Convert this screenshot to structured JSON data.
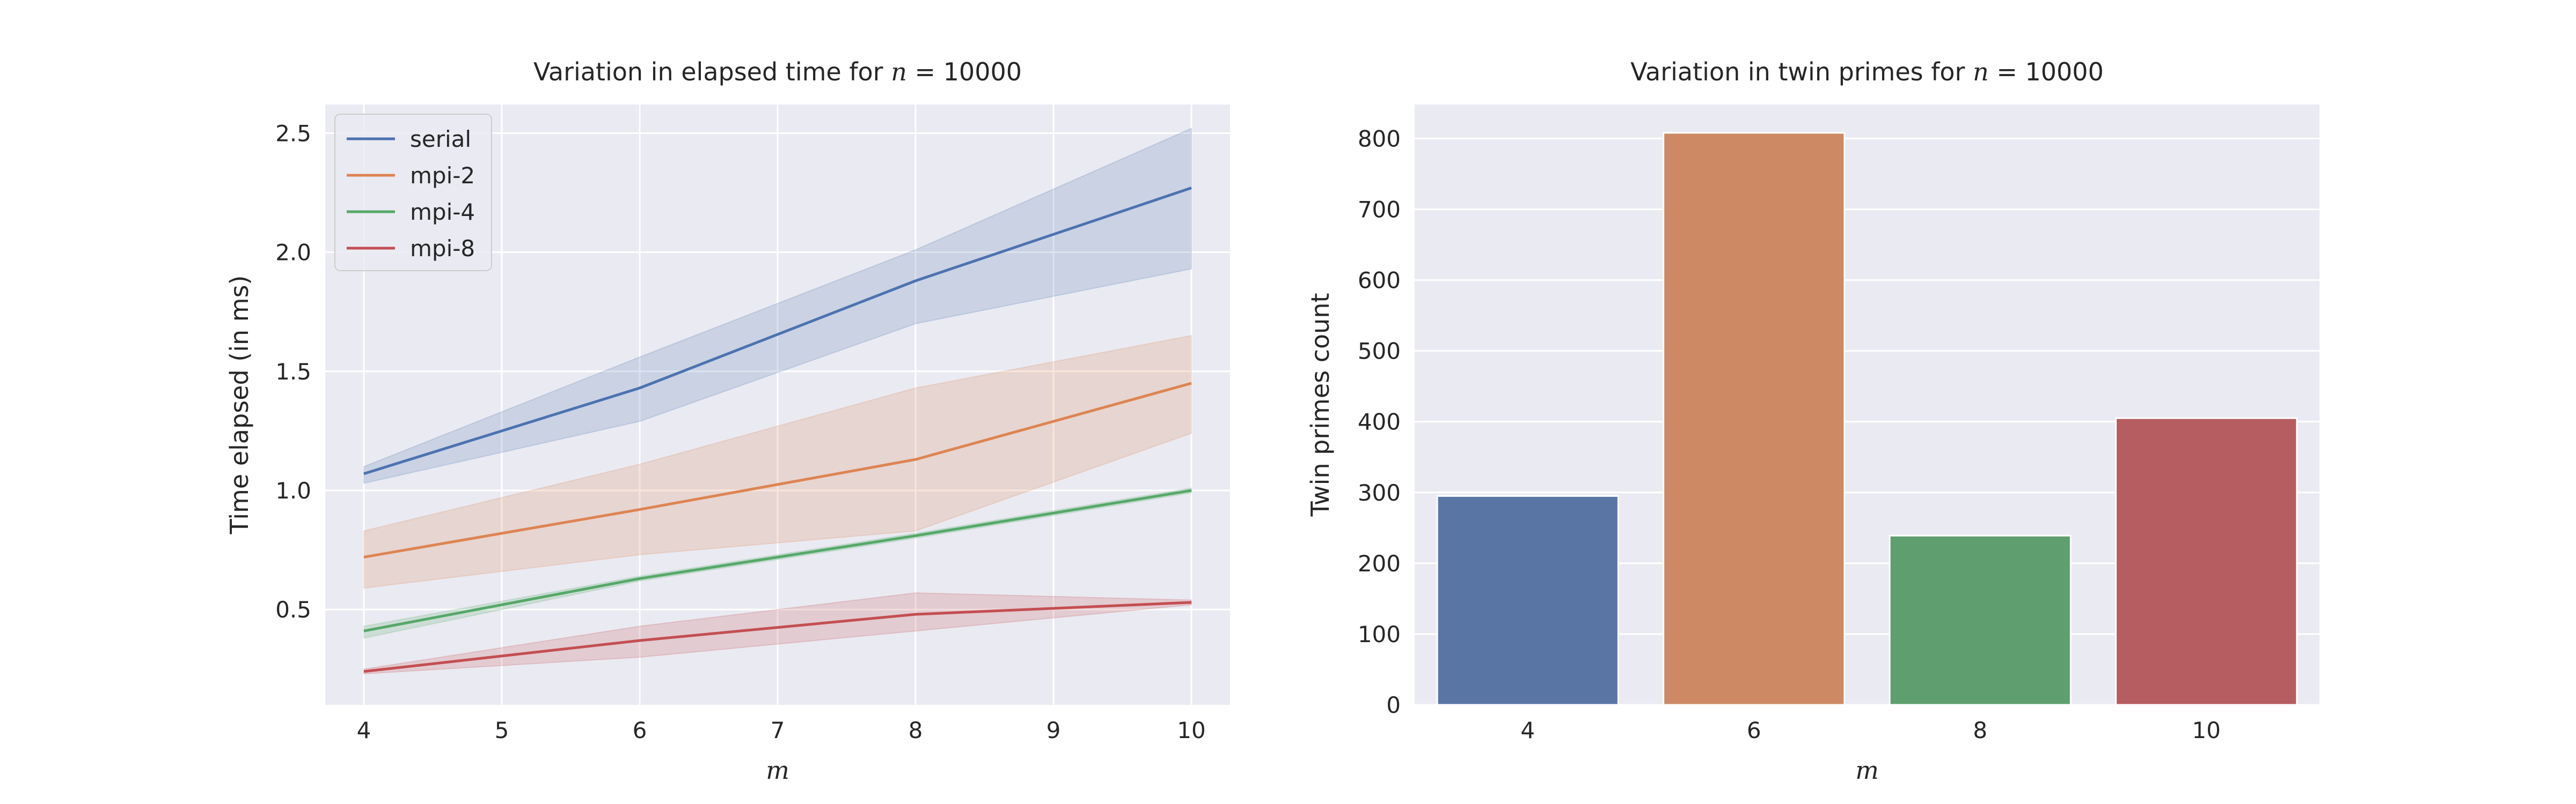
{
  "chart_data": [
    {
      "type": "line",
      "title": {
        "prefix": "Variation in elapsed time for ",
        "var": "n",
        "suffix": " = 10000"
      },
      "xlabel": "m",
      "ylabel": "Time elapsed (in ms)",
      "x": [
        4,
        6,
        8,
        10
      ],
      "xlim": [
        3.72,
        10.28
      ],
      "ylim": [
        0.1,
        2.62
      ],
      "xticks": [
        "4",
        "5",
        "6",
        "7",
        "8",
        "9",
        "10"
      ],
      "yticks": [
        "0.5",
        "1.0",
        "1.5",
        "2.0",
        "2.5"
      ],
      "grid": true,
      "legend_position": "top-left",
      "series": [
        {
          "name": "serial",
          "color": "#4c72b0",
          "values": [
            1.07,
            1.43,
            1.88,
            2.27
          ],
          "lower": [
            1.03,
            1.29,
            1.7,
            1.93
          ],
          "upper": [
            1.1,
            1.56,
            2.01,
            2.52
          ]
        },
        {
          "name": "mpi-2",
          "color": "#dd8452",
          "values": [
            0.72,
            0.92,
            1.13,
            1.45
          ],
          "lower": [
            0.59,
            0.73,
            0.83,
            1.24
          ],
          "upper": [
            0.83,
            1.11,
            1.43,
            1.65
          ]
        },
        {
          "name": "mpi-4",
          "color": "#55a868",
          "values": [
            0.41,
            0.63,
            0.81,
            1.0
          ],
          "lower": [
            0.38,
            0.62,
            0.8,
            0.99
          ],
          "upper": [
            0.43,
            0.64,
            0.82,
            1.01
          ]
        },
        {
          "name": "mpi-8",
          "color": "#c44e52",
          "values": [
            0.24,
            0.37,
            0.48,
            0.53
          ],
          "lower": [
            0.23,
            0.3,
            0.41,
            0.52
          ],
          "upper": [
            0.25,
            0.43,
            0.57,
            0.54
          ]
        }
      ]
    },
    {
      "type": "bar",
      "title": {
        "prefix": "Variation in twin primes for ",
        "var": "n",
        "suffix": " = 10000"
      },
      "xlabel": "m",
      "ylabel": "Twin primes count",
      "categories": [
        "4",
        "6",
        "8",
        "10"
      ],
      "values": [
        295,
        808,
        239,
        405
      ],
      "colors": [
        "#5975a4",
        "#cc8963",
        "#5f9e6e",
        "#b55d60"
      ],
      "ylim": [
        0,
        848
      ],
      "yticks": [
        "0",
        "100",
        "200",
        "300",
        "400",
        "500",
        "600",
        "700",
        "800"
      ],
      "grid": true
    }
  ]
}
